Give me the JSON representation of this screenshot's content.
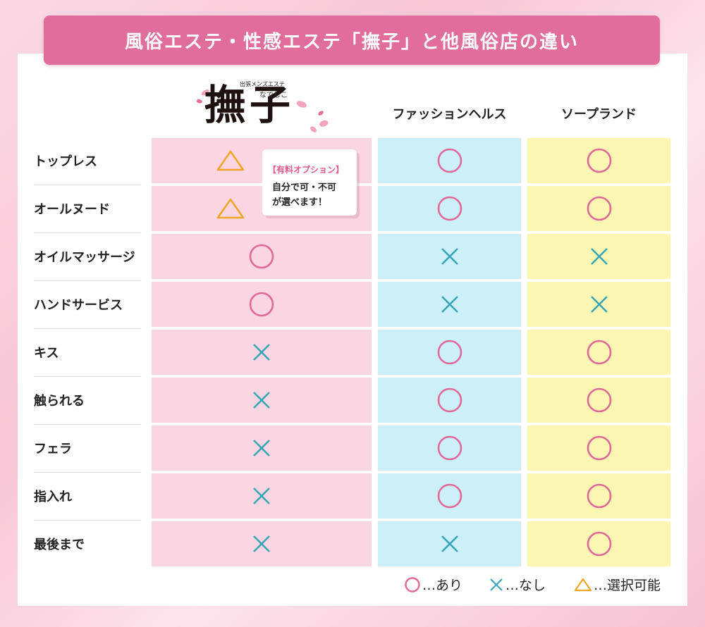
{
  "title": "風俗エステ・性感エステ「撫子」と他風俗店の違い",
  "logo": {
    "tagline": "出張メンズエステ",
    "name": "撫子",
    "reading": "なでしこ"
  },
  "columns": [
    "",
    "ファッションヘルス",
    "ソープランド"
  ],
  "tooltip": {
    "tag": "【有料オプション】",
    "line1": "自分で可・不可",
    "line2": "が選べます！"
  },
  "rows": [
    {
      "label": "トップレス",
      "values": [
        "triangle",
        "circle",
        "circle"
      ]
    },
    {
      "label": "オールヌード",
      "values": [
        "triangle",
        "circle",
        "circle"
      ]
    },
    {
      "label": "オイルマッサージ",
      "values": [
        "circle",
        "cross",
        "cross"
      ]
    },
    {
      "label": "ハンドサービス",
      "values": [
        "circle",
        "cross",
        "cross"
      ]
    },
    {
      "label": "キス",
      "values": [
        "cross",
        "circle",
        "circle"
      ]
    },
    {
      "label": "触られる",
      "values": [
        "cross",
        "circle",
        "circle"
      ]
    },
    {
      "label": "フェラ",
      "values": [
        "cross",
        "circle",
        "circle"
      ]
    },
    {
      "label": "指入れ",
      "values": [
        "cross",
        "circle",
        "circle"
      ]
    },
    {
      "label": "最後まで",
      "values": [
        "cross",
        "cross",
        "circle"
      ]
    }
  ],
  "legend": {
    "circle": "…あり",
    "cross": "…なし",
    "triangle": "…選択可能"
  },
  "colors": {
    "title_bg": "#e06d9b",
    "circle": "#e0699a",
    "cross": "#3aa6b9",
    "triangle": "#f0a629",
    "col1_bg": "#fbd5e2",
    "col2_bg": "#cdf0f8",
    "col3_bg": "#fcf6b3"
  }
}
